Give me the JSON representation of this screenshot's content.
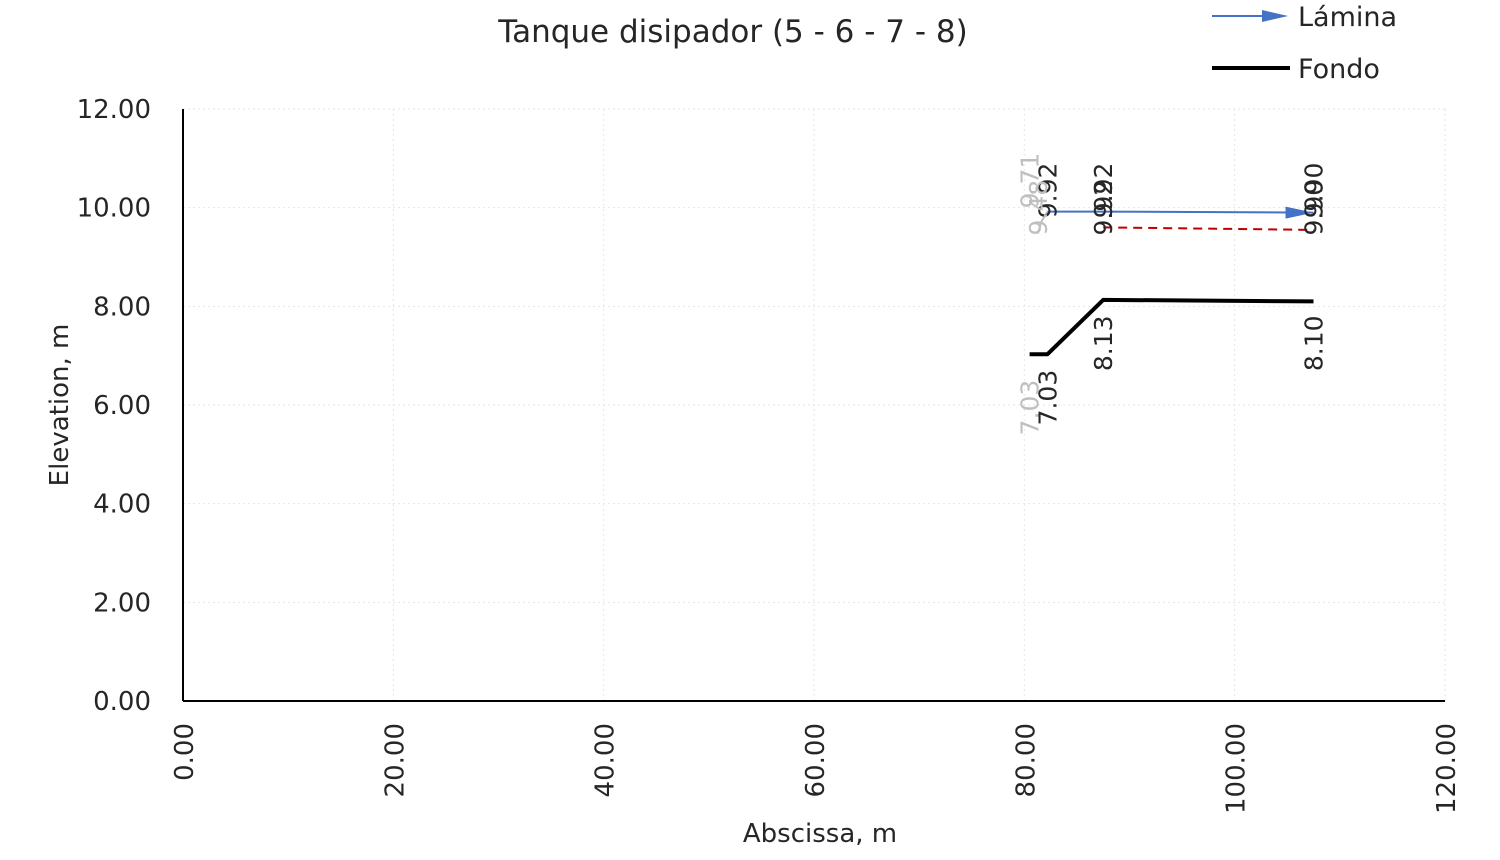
{
  "chart_data": {
    "type": "line",
    "title": "Tanque disipador (5 - 6 - 7 - 8)",
    "xlabel": "Abscissa, m",
    "ylabel": "Elevation, m",
    "xlim": [
      0,
      120
    ],
    "ylim": [
      0,
      12
    ],
    "x_ticks": [
      "0.00",
      "20.00",
      "40.00",
      "60.00",
      "80.00",
      "100.00",
      "120.00"
    ],
    "y_ticks": [
      "0.00",
      "2.00",
      "4.00",
      "6.00",
      "8.00",
      "10.00",
      "12.00"
    ],
    "grid": true,
    "legend_position": "top-right",
    "colors": {
      "lamina": "#4472c4",
      "fondo": "#000000",
      "dashed": "#c00000",
      "faint": "#bfbfbf"
    },
    "series": [
      {
        "name": "Lámina",
        "style": "line-with-arrow",
        "points": [
          [
            81.3,
            9.48
          ],
          [
            81.6,
            9.71
          ],
          [
            82.2,
            9.92
          ],
          [
            87.5,
            9.92
          ],
          [
            107.5,
            9.9
          ]
        ]
      },
      {
        "name": "Fondo",
        "style": "thick-line",
        "points": [
          [
            80.5,
            7.03
          ],
          [
            82.2,
            7.03
          ],
          [
            87.5,
            8.13
          ],
          [
            107.5,
            8.1
          ]
        ]
      },
      {
        "style": "dashed",
        "points": [
          [
            87.5,
            9.6
          ],
          [
            107.5,
            9.55
          ]
        ]
      }
    ],
    "data_labels": [
      {
        "text": "9.92",
        "x": 82.2,
        "y": 10.35,
        "faint": false
      },
      {
        "text": "9.48",
        "x": 81.3,
        "y": 10.0,
        "faint": true
      },
      {
        "text": "9.71",
        "x": 80.5,
        "y": 10.55,
        "faint": true
      },
      {
        "text": "9.92",
        "x": 87.5,
        "y": 10.35,
        "faint": false
      },
      {
        "text": "9.92",
        "x": 87.5,
        "y": 10.0,
        "faint": false
      },
      {
        "text": "9.90",
        "x": 107.5,
        "y": 10.35,
        "faint": false
      },
      {
        "text": "9.90",
        "x": 107.5,
        "y": 10.0,
        "faint": false
      },
      {
        "text": "7.03",
        "x": 82.2,
        "y": 6.15,
        "faint": false
      },
      {
        "text": "7.03",
        "x": 80.5,
        "y": 5.95,
        "faint": true
      },
      {
        "text": "8.13",
        "x": 87.5,
        "y": 7.25,
        "faint": false
      },
      {
        "text": "8.10",
        "x": 107.5,
        "y": 7.25,
        "faint": false
      }
    ]
  }
}
